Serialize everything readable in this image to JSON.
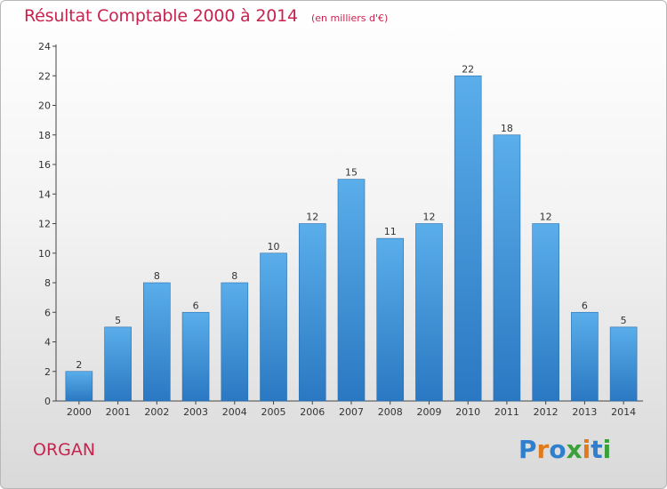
{
  "chart_data": {
    "type": "bar",
    "title": "Résultat Comptable 2000 à 2014",
    "subtitle": "(en milliers d'€)",
    "categories": [
      "2000",
      "2001",
      "2002",
      "2003",
      "2004",
      "2005",
      "2006",
      "2007",
      "2008",
      "2009",
      "2010",
      "2011",
      "2012",
      "2013",
      "2014"
    ],
    "values": [
      2,
      5,
      8,
      6,
      8,
      10,
      12,
      15,
      11,
      12,
      22,
      18,
      12,
      6,
      5
    ],
    "ylim": [
      0,
      24
    ],
    "yticks": [
      0,
      2,
      4,
      6,
      8,
      10,
      12,
      14,
      16,
      18,
      20,
      22,
      24
    ],
    "grid": false,
    "bar_color": "#3a8fd6",
    "data_labels": true
  },
  "footer": {
    "place": "ORGAN",
    "logo": {
      "text": "Proxiti",
      "letters": [
        {
          "ch": "P",
          "color": "#2f7fcf"
        },
        {
          "ch": "r",
          "color": "#e07a1a"
        },
        {
          "ch": "o",
          "color": "#2f7fcf"
        },
        {
          "ch": "x",
          "color": "#3aa13a"
        },
        {
          "ch": "i",
          "color": "#e07a1a"
        },
        {
          "ch": "t",
          "color": "#2f7fcf"
        },
        {
          "ch": "i",
          "color": "#3aa13a"
        }
      ]
    }
  }
}
